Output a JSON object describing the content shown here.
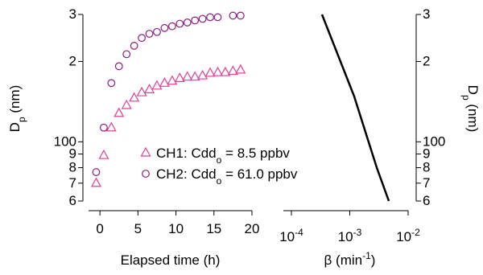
{
  "chart_data": [
    {
      "type": "scatter",
      "xlabel": "Elapsed time (h)",
      "ylabel": {
        "text": "D",
        "sub": "p",
        "after": " (nm)"
      },
      "xlim": [
        -1.5,
        20
      ],
      "xticks": [
        0,
        5,
        10,
        15,
        20
      ],
      "ylim": [
        60,
        300
      ],
      "ylog": true,
      "yticks": [
        {
          "value": 60,
          "label": "6"
        },
        {
          "value": 70,
          "label": "7"
        },
        {
          "value": 80,
          "label": "8"
        },
        {
          "value": 90,
          "label": "9"
        },
        100,
        {
          "value": 200,
          "label": "2"
        },
        {
          "value": 300,
          "label": "3"
        }
      ],
      "series": [
        {
          "name": {
            "text": "CH1: Cdd",
            "sub": "o",
            "after": " = 8.5 ppbv"
          },
          "marker": "triangle",
          "color": "#e0409a",
          "x": [
            -0.5,
            0.5,
            1.5,
            2.5,
            3.5,
            4.5,
            5.5,
            6.5,
            7.5,
            8.5,
            9.5,
            10.5,
            11.5,
            12.5,
            13.5,
            14.5,
            15.5,
            16.5,
            17.5,
            18.5
          ],
          "values": [
            70,
            89,
            113,
            128,
            137,
            146,
            153,
            157,
            162,
            166,
            169,
            173,
            175,
            175,
            177,
            181,
            182,
            182,
            184,
            186
          ]
        },
        {
          "name": {
            "text": "CH2: Cdd",
            "sub": "o",
            "after": " = 61.0 ppbv"
          },
          "marker": "circle",
          "color": "#8b1a7e",
          "x": [
            -0.5,
            0.5,
            1.5,
            2.5,
            3.5,
            4.5,
            5.5,
            6.5,
            7.5,
            8.5,
            9.5,
            10.5,
            11.5,
            12.5,
            13.5,
            14.5,
            15.5,
            17.5,
            18.5
          ],
          "values": [
            77,
            113,
            166,
            192,
            213,
            229,
            245,
            254,
            258,
            267,
            271,
            277,
            280,
            285,
            289,
            293,
            293,
            297,
            297
          ]
        }
      ]
    },
    {
      "type": "line",
      "xlabel": {
        "text": "β (min",
        "sup": "-1",
        "after": ")"
      },
      "ylabel": {
        "text": "D",
        "sub": "p",
        "after": " (nm)"
      },
      "xlim": [
        0.0001,
        0.01
      ],
      "xlog": true,
      "xticks": [
        {
          "value": 0.0001,
          "label": "10",
          "sup": "-4"
        },
        {
          "value": 0.001,
          "label": "10",
          "sup": "-3"
        },
        {
          "value": 0.01,
          "label": "10",
          "sup": "-2"
        }
      ],
      "ylim": [
        60,
        300
      ],
      "ylog": true,
      "yticks": [
        {
          "value": 60,
          "label": "6"
        },
        {
          "value": 70,
          "label": "7"
        },
        {
          "value": 80,
          "label": "8"
        },
        {
          "value": 90,
          "label": "9"
        },
        100,
        {
          "value": 200,
          "label": "2"
        },
        {
          "value": 300,
          "label": "3"
        }
      ],
      "series": [
        {
          "color": "#000000",
          "x": [
            0.000334,
            0.00119,
            0.0029,
            0.00467
          ],
          "values": [
            300,
            148,
            80,
            60
          ]
        }
      ]
    }
  ]
}
